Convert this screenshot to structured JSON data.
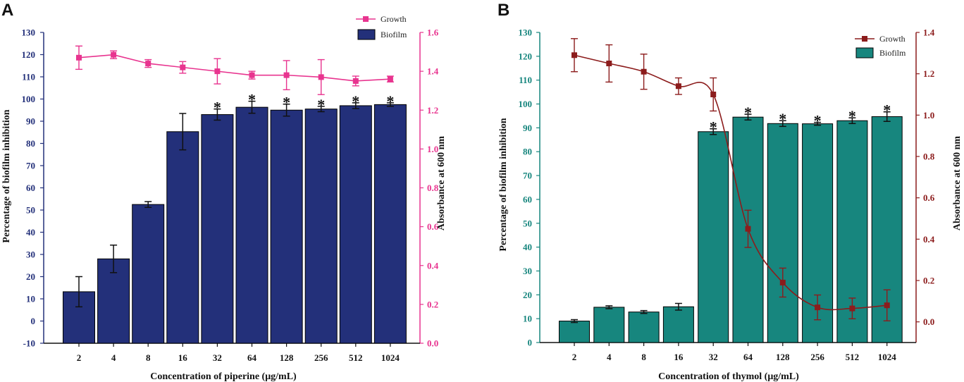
{
  "panels": [
    {
      "letter": "A",
      "colors": {
        "bar": "#23307a",
        "left_axis": "#23307a",
        "line": "#e8348f",
        "right_axis": "#e8348f"
      },
      "legend": {
        "line_label": "Growth",
        "bar_label": "Biofilm",
        "placement": "top-right"
      },
      "chart_data": {
        "type": "bar+line",
        "xlabel": "Concentration of piperine (μg/mL)",
        "ylabel": "Percentage of biofilm inhibition",
        "y2label": "Absorbance at 600 nm",
        "categories": [
          "2",
          "4",
          "8",
          "16",
          "32",
          "64",
          "128",
          "256",
          "512",
          "1024"
        ],
        "ylim": [
          -10,
          130
        ],
        "yticks": [
          -10,
          0,
          10,
          20,
          30,
          40,
          50,
          60,
          70,
          80,
          90,
          100,
          110,
          120,
          130
        ],
        "y2lim": [
          0,
          1.6
        ],
        "y2ticks": [
          "0.0",
          "0.2",
          "0.4",
          "0.6",
          "0.8",
          "1.0",
          "1.2",
          "1.4",
          "1.6"
        ],
        "biofilm": {
          "values": [
            13.2,
            28.0,
            52.5,
            85.3,
            93.0,
            96.3,
            95.0,
            95.5,
            97.0,
            97.5
          ],
          "errors": [
            6.8,
            6.2,
            1.3,
            8.2,
            2.5,
            2.7,
            2.7,
            1.2,
            1.3,
            0.8
          ]
        },
        "growth": {
          "values": [
            1.47,
            1.485,
            1.44,
            1.42,
            1.4,
            1.38,
            1.38,
            1.37,
            1.35,
            1.36
          ],
          "errors": [
            0.06,
            0.02,
            0.02,
            0.03,
            0.065,
            0.02,
            0.075,
            0.09,
            0.025,
            0.015
          ]
        },
        "significance": [
          false,
          false,
          false,
          false,
          true,
          true,
          true,
          true,
          true,
          true
        ],
        "significance_symbol": "*"
      }
    },
    {
      "letter": "B",
      "colors": {
        "bar": "#17867e",
        "left_axis": "#17867e",
        "line": "#8c1c1c",
        "right_axis": "#8c1c1c"
      },
      "legend": {
        "line_label": "Growth",
        "bar_label": "Biofilm",
        "placement": "top-right"
      },
      "chart_data": {
        "type": "bar+line",
        "xlabel": "Concentration of thymol (μg/mL)",
        "ylabel": "Percentage of biofilm inhibition",
        "y2label": "Absorbance at 600 nm",
        "categories": [
          "2",
          "4",
          "8",
          "16",
          "32",
          "64",
          "128",
          "256",
          "512",
          "1024"
        ],
        "ylim": [
          0,
          130
        ],
        "yticks": [
          0,
          10,
          20,
          30,
          40,
          50,
          60,
          70,
          80,
          90,
          100,
          110,
          120,
          130
        ],
        "y2lim": [
          -0.1,
          1.4
        ],
        "y2ticks": [
          "0.0",
          "0.2",
          "0.4",
          "0.6",
          "0.8",
          "1.0",
          "1.2",
          "1.4"
        ],
        "biofilm": {
          "values": [
            9.0,
            14.8,
            12.8,
            15.0,
            88.4,
            94.5,
            91.8,
            91.7,
            93.0,
            94.7
          ],
          "errors": [
            0.6,
            0.6,
            0.6,
            1.4,
            1.2,
            1.2,
            1.2,
            0.6,
            1.2,
            2.0
          ]
        },
        "growth": {
          "values": [
            1.29,
            1.25,
            1.21,
            1.14,
            1.1,
            0.45,
            0.19,
            0.07,
            0.065,
            0.08
          ],
          "errors": [
            0.08,
            0.09,
            0.085,
            0.04,
            0.08,
            0.09,
            0.07,
            0.06,
            0.05,
            0.075
          ]
        },
        "significance": [
          false,
          false,
          false,
          false,
          true,
          true,
          true,
          true,
          true,
          true
        ],
        "significance_symbol": "*"
      }
    }
  ]
}
